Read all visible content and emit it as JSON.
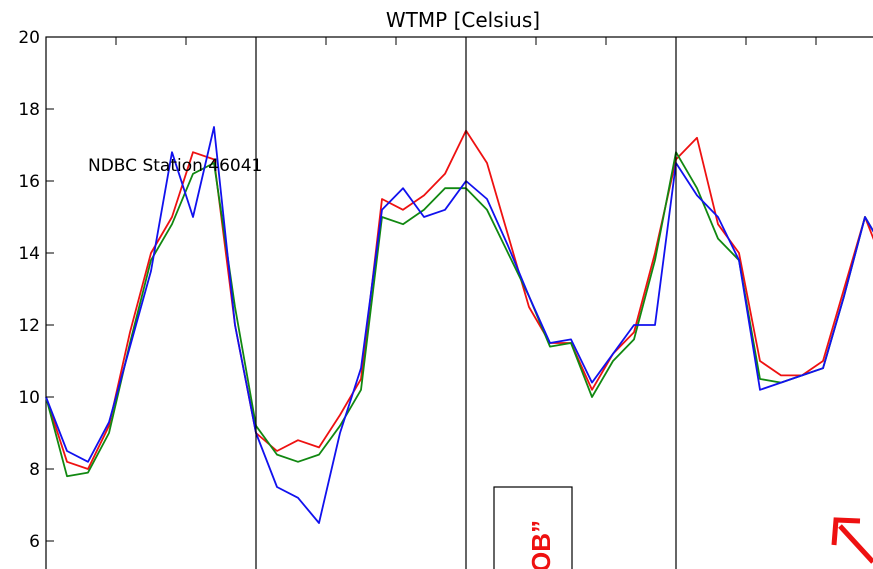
{
  "chart_data": {
    "type": "line",
    "title": "WTMP [Celsius]",
    "xlabel": "",
    "ylabel": "",
    "ylim": [
      5,
      20
    ],
    "yticks": [
      6,
      8,
      10,
      12,
      14,
      16,
      18,
      20
    ],
    "grid": false,
    "annotation": "NDBC Station 46041",
    "callout_text": "OB”",
    "x_divisions": 4,
    "colors": {
      "red": "#ee1111",
      "green": "#118811",
      "blue": "#1111ee"
    },
    "series": [
      {
        "color": "red",
        "x": [
          0,
          0.1,
          0.2,
          0.3,
          0.4,
          0.5,
          0.6,
          0.7,
          0.8,
          0.9,
          1.0,
          1.1,
          1.2,
          1.3,
          1.4,
          1.5,
          1.6,
          1.7,
          1.8,
          1.9,
          2.0,
          2.1,
          2.2,
          2.3,
          2.4,
          2.5,
          2.6,
          2.7,
          2.8,
          2.9,
          3.0,
          3.1,
          3.2,
          3.3,
          3.4,
          3.5,
          3.6,
          3.7,
          3.8,
          3.9,
          4.0
        ],
        "y": [
          10.0,
          8.2,
          8.0,
          9.2,
          11.8,
          14.0,
          15.0,
          16.8,
          16.6,
          12.0,
          9.0,
          8.5,
          8.8,
          8.6,
          9.5,
          10.5,
          15.5,
          15.2,
          15.6,
          16.2,
          17.4,
          16.5,
          14.5,
          12.5,
          11.5,
          11.5,
          10.2,
          11.2,
          11.8,
          14.0,
          16.6,
          17.2,
          14.8,
          14.0,
          11.0,
          10.6,
          10.6,
          11.0,
          13.0,
          15.0,
          13.5
        ]
      },
      {
        "color": "green",
        "x": [
          0,
          0.1,
          0.2,
          0.3,
          0.4,
          0.5,
          0.6,
          0.7,
          0.8,
          0.9,
          1.0,
          1.1,
          1.2,
          1.3,
          1.4,
          1.5,
          1.6,
          1.7,
          1.8,
          1.9,
          2.0,
          2.1,
          2.2,
          2.3,
          2.4,
          2.5,
          2.6,
          2.7,
          2.8,
          2.9,
          3.0,
          3.1,
          3.2,
          3.3,
          3.4,
          3.5,
          3.6,
          3.7,
          3.8,
          3.9,
          4.0
        ],
        "y": [
          10.0,
          7.8,
          7.9,
          9.0,
          11.5,
          13.8,
          14.8,
          16.2,
          16.5,
          12.5,
          9.2,
          8.4,
          8.2,
          8.4,
          9.2,
          10.2,
          15.0,
          14.8,
          15.2,
          15.8,
          15.8,
          15.2,
          14.0,
          12.8,
          11.4,
          11.5,
          10.0,
          11.0,
          11.6,
          13.8,
          16.8,
          15.8,
          14.4,
          13.8,
          10.5,
          10.4,
          10.6,
          10.8,
          12.8,
          15.0,
          14.0
        ]
      },
      {
        "color": "blue",
        "x": [
          0,
          0.1,
          0.2,
          0.3,
          0.4,
          0.5,
          0.6,
          0.7,
          0.8,
          0.9,
          1.0,
          1.1,
          1.2,
          1.3,
          1.4,
          1.5,
          1.6,
          1.7,
          1.8,
          1.9,
          2.0,
          2.1,
          2.2,
          2.3,
          2.4,
          2.5,
          2.6,
          2.7,
          2.8,
          2.9,
          3.0,
          3.1,
          3.2,
          3.3,
          3.4,
          3.5,
          3.6,
          3.7,
          3.8,
          3.9,
          4.0
        ],
        "y": [
          10.0,
          8.5,
          8.2,
          9.3,
          11.4,
          13.5,
          16.8,
          15.0,
          17.5,
          12.0,
          9.0,
          7.5,
          7.2,
          6.5,
          9.0,
          10.8,
          15.2,
          15.8,
          15.0,
          15.2,
          16.0,
          15.5,
          14.2,
          12.8,
          11.5,
          11.6,
          10.4,
          11.2,
          12.0,
          12.0,
          16.5,
          15.6,
          15.0,
          13.8,
          10.2,
          10.4,
          10.6,
          10.8,
          12.8,
          15.0,
          14.0
        ]
      }
    ]
  }
}
